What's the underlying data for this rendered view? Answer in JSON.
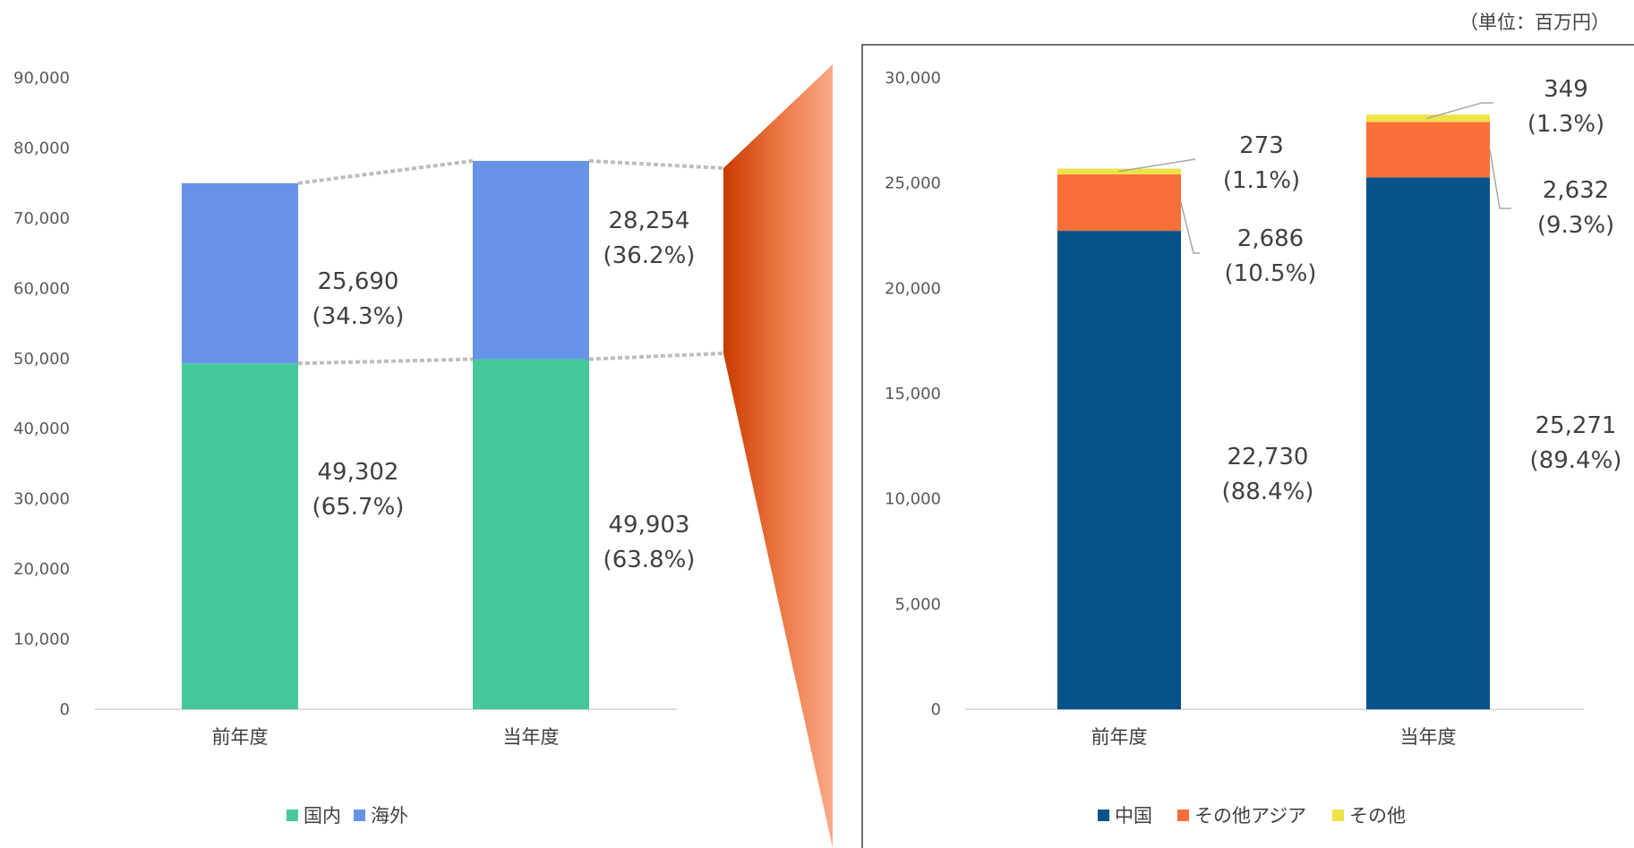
{
  "unit_note": "（単位：百万円）",
  "chart_data": [
    {
      "type": "bar",
      "stacked": true,
      "categories": [
        "前年度",
        "当年度"
      ],
      "series": [
        {
          "name": "国内",
          "color": "#47C89A",
          "values": [
            49302,
            49903
          ],
          "labels": [
            "49,302",
            "49,903"
          ],
          "shares": [
            "(65.7%)",
            "(63.8%)"
          ]
        },
        {
          "name": "海外",
          "color": "#6693E6",
          "values": [
            25690,
            28254
          ],
          "labels": [
            "25,690",
            "28,254"
          ],
          "shares": [
            "(34.3%)",
            "(36.2%)"
          ]
        }
      ],
      "ylim": [
        0,
        90000
      ],
      "yticks": [
        0,
        10000,
        20000,
        30000,
        40000,
        50000,
        60000,
        70000,
        80000,
        90000
      ],
      "ytick_labels": [
        "0",
        "10,000",
        "20,000",
        "30,000",
        "40,000",
        "50,000",
        "60,000",
        "70,000",
        "80,000",
        "90,000"
      ],
      "legend": "bottom",
      "grid": false
    },
    {
      "type": "bar",
      "stacked": true,
      "categories": [
        "前年度",
        "当年度"
      ],
      "series": [
        {
          "name": "中国",
          "color": "#06538B",
          "values": [
            22730,
            25271
          ],
          "labels": [
            "22,730",
            "25,271"
          ],
          "shares": [
            "(88.4%)",
            "(89.4%)"
          ]
        },
        {
          "name": "その他アジア",
          "color": "#FA6E3A",
          "values": [
            2686,
            2632
          ],
          "labels": [
            "2,686",
            "2,632"
          ],
          "shares": [
            "(10.5%)",
            "(9.3%)"
          ]
        },
        {
          "name": "その他",
          "color": "#ECE348",
          "values": [
            273,
            349
          ],
          "labels": [
            "273",
            "349"
          ],
          "shares": [
            "(1.1%)",
            "(1.3%)"
          ]
        }
      ],
      "ylim": [
        0,
        30000
      ],
      "yticks": [
        0,
        5000,
        10000,
        15000,
        20000,
        25000,
        30000
      ],
      "ytick_labels": [
        "0",
        "5,000",
        "10,000",
        "15,000",
        "20,000",
        "25,000",
        "30,000"
      ],
      "legend": "bottom",
      "grid": false
    }
  ]
}
